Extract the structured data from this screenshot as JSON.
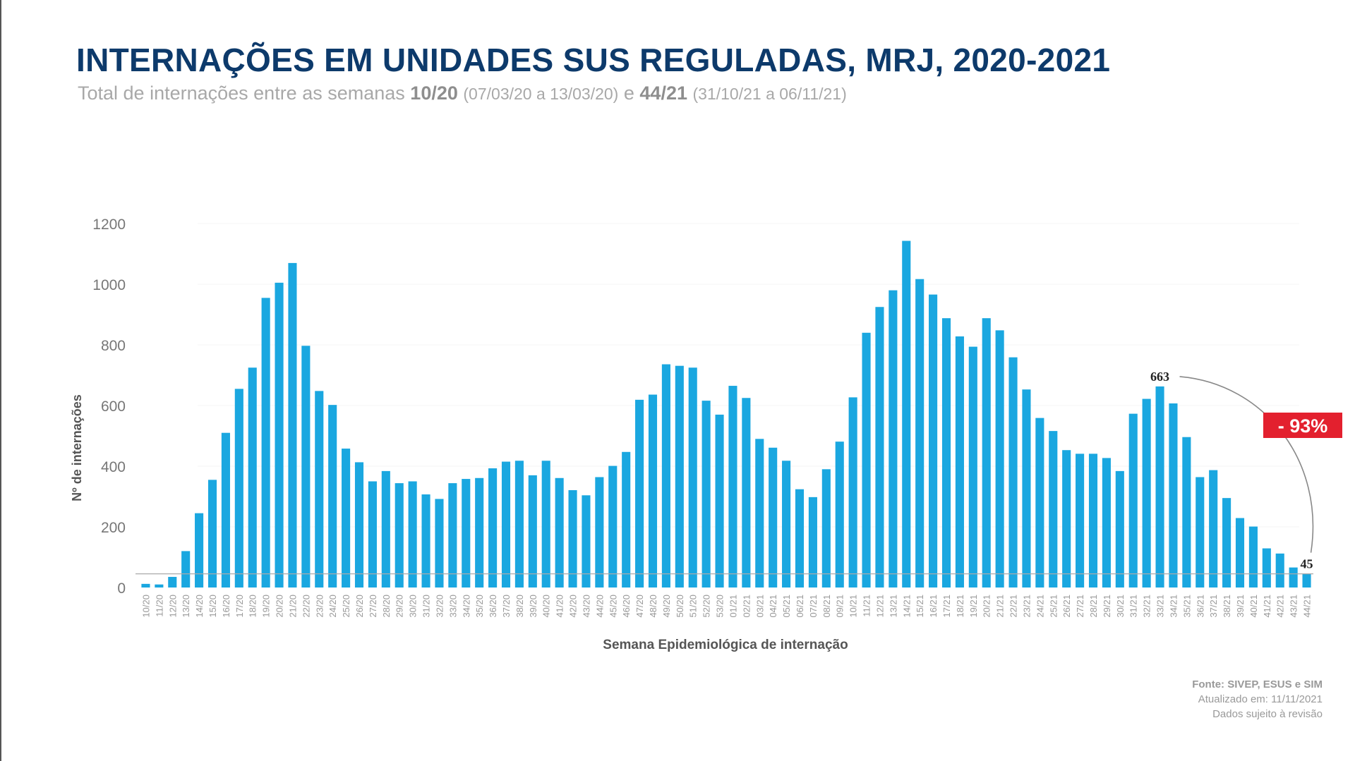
{
  "header": {
    "title": "INTERNAÇÕES EM UNIDADES SUS REGULADAS, MRJ, 2020-2021",
    "subtitle_prefix": "Total de internações entre as semanas",
    "week_start": "10/20",
    "week_start_range": "(07/03/20 a 13/03/20)",
    "connector": "e",
    "week_end": "44/21",
    "week_end_range": "(31/10/21 a 06/11/21)"
  },
  "footer": {
    "source": "Fonte: SIVEP, ESUS e SIM",
    "updated": "Atualizado em: 11/11/2021",
    "note": "Dados sujeito à revisão"
  },
  "colors": {
    "bar": "#1aa7e0",
    "title": "#0d3a6b",
    "badge": "#e3202e"
  },
  "chart_data": {
    "type": "bar",
    "title": "INTERNAÇÕES EM UNIDADES SUS REGULADAS, MRJ, 2020-2021",
    "xlabel": "Semana Epidemiológica  de internação",
    "ylabel": "Nº de internações",
    "ylim": [
      0,
      1200
    ],
    "yticks": [
      0,
      200,
      400,
      600,
      800,
      1000,
      1200
    ],
    "grid": false,
    "reference_line": 45,
    "categories": [
      "10/20",
      "11/20",
      "12/20",
      "13/20",
      "14/20",
      "15/20",
      "16/20",
      "17/20",
      "18/20",
      "19/20",
      "20/20",
      "21/20",
      "22/20",
      "23/20",
      "24/20",
      "25/20",
      "26/20",
      "27/20",
      "28/20",
      "29/20",
      "30/20",
      "31/20",
      "32/20",
      "33/20",
      "34/20",
      "35/20",
      "36/20",
      "37/20",
      "38/20",
      "39/20",
      "40/20",
      "41/20",
      "42/20",
      "43/20",
      "44/20",
      "45/20",
      "46/20",
      "47/20",
      "48/20",
      "49/20",
      "50/20",
      "51/20",
      "52/20",
      "53/20",
      "01/21",
      "02/21",
      "03/21",
      "04/21",
      "05/21",
      "06/21",
      "07/21",
      "08/21",
      "09/21",
      "10/21",
      "11/21",
      "12/21",
      "13/21",
      "14/21",
      "15/21",
      "16/21",
      "17/21",
      "18/21",
      "19/21",
      "20/21",
      "21/21",
      "22/21",
      "23/21",
      "24/21",
      "25/21",
      "26/21",
      "27/21",
      "28/21",
      "29/21",
      "30/21",
      "31/21",
      "32/21",
      "33/21",
      "34/21",
      "35/21",
      "36/21",
      "37/21",
      "38/21",
      "39/21",
      "40/21",
      "41/21",
      "42/21",
      "43/21",
      "44/21"
    ],
    "values": [
      12,
      10,
      35,
      120,
      245,
      355,
      510,
      655,
      725,
      955,
      1005,
      1070,
      797,
      648,
      602,
      458,
      413,
      350,
      384,
      344,
      350,
      307,
      292,
      344,
      358,
      361,
      393,
      415,
      418,
      370,
      418,
      361,
      321,
      304,
      364,
      401,
      447,
      619,
      636,
      736,
      731,
      725,
      616,
      570,
      665,
      625,
      490,
      461,
      418,
      324,
      298,
      390,
      481,
      627,
      840,
      925,
      980,
      1143,
      1017,
      966,
      888,
      828,
      794,
      888,
      848,
      759,
      653,
      559,
      516,
      453,
      441,
      441,
      427,
      384,
      573,
      622,
      663,
      607,
      496,
      364,
      387,
      295,
      229,
      201,
      129,
      112,
      66,
      45
    ],
    "annotations": [
      {
        "category": "33/21",
        "label": "663"
      },
      {
        "category": "44/21",
        "label": "45"
      },
      {
        "label": "- 93%"
      }
    ]
  }
}
